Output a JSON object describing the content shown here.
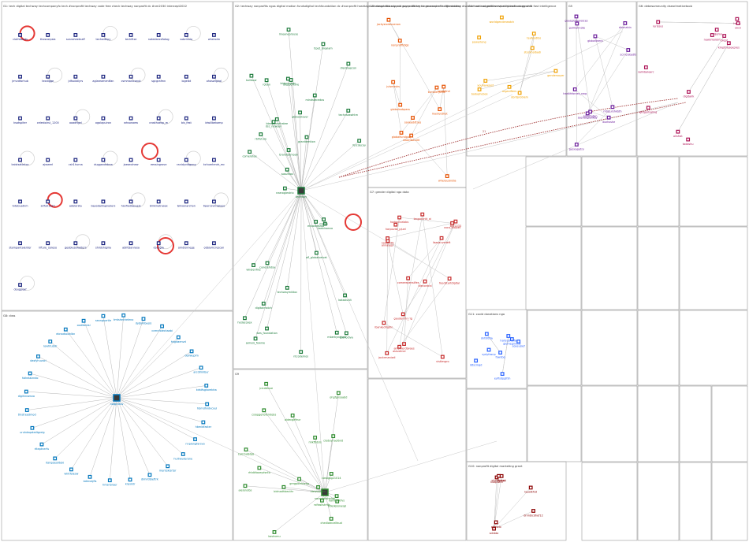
{
  "colors": {
    "g1": "#1a237e",
    "g2": "#0277bd",
    "g3": "#1b7a3a",
    "g4": "#2e8b2e",
    "g5": "#e65100",
    "g6": "#c62828",
    "g7": "#f0a000",
    "g8": "#6a1b9a",
    "g9": "#ad1457",
    "g10": "#2962ff",
    "g11": "#7cb342",
    "g12": "#8b0000"
  },
  "groups": [
    {
      "id": "G1",
      "header": "G1: tech digital techway techcompanyfx tech #nonprofit techway code free check techway nonprofit dc #nm2030 intercept2022",
      "color": "#1a237e",
      "nodes": [
        "clothbonds",
        "thoscorpsia",
        "scansheetnaff",
        "techwithpy",
        "techlfixe",
        "notedancefotog",
        "sobrinvlo",
        "whsholm",
        "jrmvdforhub",
        "texdigge",
        "jdfsolotlyrs",
        "aglareamentfan",
        "csmmaniconut",
        "sgcgrafmn",
        "logelbt",
        "ohaswigiral",
        "ksatspiter",
        "celestoirul_1200",
        "oaadfigel",
        "ogolapuiron",
        "whsonaew",
        "crosthoexp_m",
        "bis_fest",
        "idwillbekamp",
        "kaistsaloctoc",
        "ajwwerl",
        "csh1hurna",
        "dugganastrea",
        "joeseolnew",
        "eessingrove",
        "ranidyvidgong",
        "kchuerlendr_mc",
        "tvtobuatnm",
        "sdfu01227",
        "adolorsta",
        "beyodaimgsvolers",
        "hsofrediapuels",
        "blinknetrasex",
        "tjmsonarchon",
        "tipercsvinsqlyps",
        "stampantalenter",
        "lifture_soreso",
        "geoblesowalters",
        "shildshigilia",
        "ablfdsanrasa",
        "dodsgla",
        "omdisnnege",
        "obblymcrescan",
        "dougpeaf"
      ]
    },
    {
      "id": "G2",
      "header": "G2: techway nonprofits ngos digital motion fundsdigital techfoundation dc #nonprofit hashtags whatexpl nobody mb guyes library dc researcher adifferentway",
      "color": "#1b7a3a",
      "nodes": [
        "techway",
        "gionodiva",
        "comerotee",
        "dleidnapcon",
        "nearogiestrio",
        "mindstecedos",
        "jemeis_fownie",
        "bidzcomoty",
        "globalclever",
        "whelenfinz",
        "bleagmaidhatee",
        "hodacosex",
        "digitalmatch",
        "diepocntvre",
        "granitemtion",
        "hadvisanvo",
        "kolliscar",
        "lineaneprouse",
        "fercdecoy",
        "ericoddtsroo",
        "techvsaswhtm",
        "sosuthas",
        "techwaymiktoc",
        "brandoamoon",
        "rotion",
        "tipet_brealam",
        "cunetehdsa",
        "mberkynelsea",
        "kotzolunit",
        "mbtilo",
        "ntcodemos",
        "dsc_newsen",
        "rbifuture",
        "ofl_globalvelvet",
        "wes_foundation"
      ]
    },
    {
      "id": "G3",
      "header": "G3: nonprofits support nonprofit tech ngo nonprofit organization disasterfund nonprofit services donations awards",
      "color": "#e65100",
      "nodes": [
        "saneeddtreo",
        "julsmsshs",
        "jackysixdecoenon",
        "mashysthot",
        "whereusindia",
        "nonprofitdigs",
        "awardsaudit",
        "globalnobpass",
        "globalfundproj",
        "tumbleryzlife",
        "nerdsfind"
      ]
    },
    {
      "id": "G4",
      "header": "G4: nominal gender equality technology shift fast intelligence",
      "color": "#f0a000",
      "nodes": [
        "worldgenderwatch",
        "teafoodlbs",
        "gendersoyer",
        "organifiers",
        "dontproblem",
        "youhavejust",
        "powerlong",
        "stockholbadi",
        "bodyphobos"
      ]
    },
    {
      "id": "G5",
      "header": "G5",
      "color": "#6a1b9a",
      "nodes": [
        "gulmehnote",
        "gaasglobalvoices",
        "healthforces_nwg",
        "dinmahin",
        "scrnclatedfs",
        "wurksshe",
        "globaltnerp",
        "saturtutan",
        "gesxapetry",
        "mtrgurshkbth",
        "seehasglolikay"
      ]
    },
    {
      "id": "G6",
      "header": "G6: debesomeunity dsearlmeticetoob",
      "color": "#ad1457",
      "nodes": [
        "miljomn",
        "alisfrat",
        "gregorisaling",
        "digitalrk",
        "tadashu",
        "lerissus",
        "newsmoroirt",
        "kmpthiosexpres",
        "salinbalearc",
        "blopt",
        "holes",
        "ukcn"
      ]
    },
    {
      "id": "G7",
      "header": "G7: gender digital ngo data",
      "color": "#c62828",
      "nodes": [
        "harpovist_pjuel",
        "feedstartdigital",
        "comerepenslifes",
        "vistlesgro",
        "ibankedrigdin",
        "annasepr",
        "blecontral",
        "alavoliner",
        "gaudernhi_rig",
        "coca_bioplet",
        "lisasauvedeft",
        "hodoclivelabs",
        "nodontifs",
        "bsc2233",
        "alnomerdtwoes",
        "tmgocontt_ai",
        "jackrmanizdi"
      ]
    },
    {
      "id": "G8",
      "header": "G8: cbss",
      "color": "#0277bd",
      "nodes": [
        "natgnclav",
        "hbmidfaster",
        "nnplongfarsvo",
        "hurtwuderone",
        "mentskisrtor",
        "dimntlbieftrk",
        "krpsistr",
        "hmsnbroer",
        "bdmubjfis",
        "whitfoiesw",
        "itahpoeoilteki",
        "rtteptnerfu",
        "uruhdwpdedtgreig",
        "thistreedmod",
        "digihinsesno",
        "hbhelalzndo",
        "dasfyhuvoci",
        "lowhtubdr",
        "ebnadsouhlbn",
        "oodllsmisi",
        "seonguartle",
        "tmtshecheleno",
        "dyjbmlbeeis",
        "ccmnfoleckaabi",
        "hkgitaenvd",
        "deilwuplm",
        "arcdlmhbur",
        "kdstfsgkorebha",
        "hbmdhndvcuul"
      ]
    },
    {
      "id": "G9",
      "header": "G9",
      "color": "#2e8b2e",
      "nodes": [
        "socacpttshelda",
        "aldecgiffeur",
        "chedlotncelfaud",
        "clodevnaoitvid",
        "rsfiasllstrhfs",
        "csiopgehbfsmtobs",
        "vielvtionem",
        "bdeikjssnasgl",
        "koshvmu",
        "nhkftidsls",
        "rhtdkfaaeydsnto",
        "bidnadhbeuthr",
        "alelonsibs",
        "cpicmatjdgs",
        "cwoigsg21014",
        "jcicddiuse",
        "kamrdifkfvs",
        "ohgfgnsoabd",
        "gregpoinbarsg"
      ]
    },
    {
      "id": "G10",
      "header": "G10: nonprofit digital marketing grant",
      "color": "#8b0000",
      "nodes": [
        "sdntda",
        "lopatkfsd",
        "dnmbicdhef12",
        "kdaptwin",
        "pjfwsdo",
        "fsvtgd",
        "shsudpsag"
      ]
    },
    {
      "id": "G11",
      "header": "G11: covid donations ngo",
      "color": "#2962ff",
      "nodes": [
        "ldtscmgd",
        "fowsbg",
        "eyfisdpgifsh",
        "glomeginntal",
        "sydyfosnp",
        "sooeuslef",
        "hahsusheffa",
        "dnfsfdtla"
      ]
    }
  ],
  "edge_labels": [
    "21"
  ]
}
